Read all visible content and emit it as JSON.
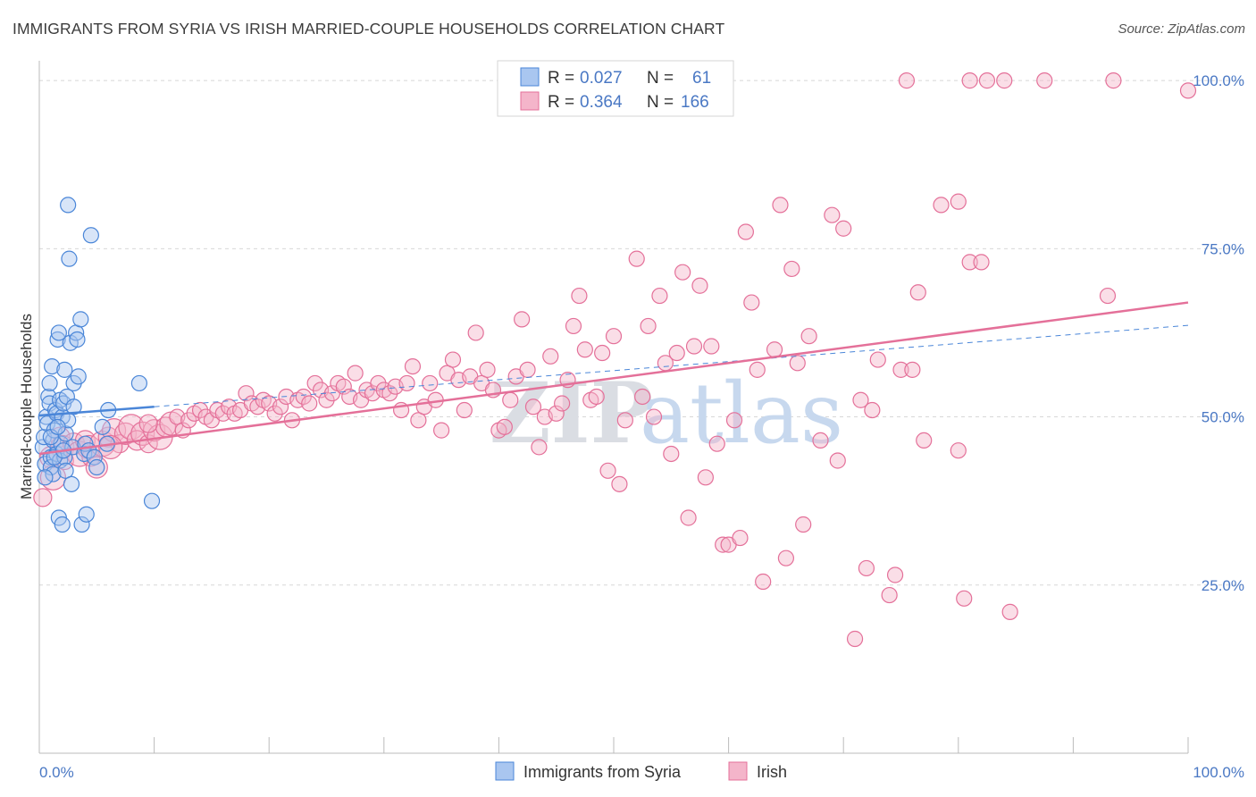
{
  "title": "IMMIGRANTS FROM SYRIA VS IRISH MARRIED-COUPLE HOUSEHOLDS CORRELATION CHART",
  "source": "Source: ZipAtlas.com",
  "watermark": {
    "zip": "ZIP",
    "atlas": "atlas"
  },
  "colors": {
    "blue": "#4a86d8",
    "blue_fill": "#a9c6f0",
    "pink": "#e47099",
    "pink_fill": "#f4b5ca",
    "grid": "#d8d8d8",
    "axis_text": "#4a78c4"
  },
  "chart_data": {
    "type": "scatter",
    "xlabel": "",
    "ylabel": "Married-couple Households",
    "xlim": [
      0,
      100
    ],
    "ylim": [
      0,
      104
    ],
    "x_tick_labels": [
      {
        "value": 0,
        "label": "0.0%"
      },
      {
        "value": 100,
        "label": "100.0%"
      }
    ],
    "y_tick_labels": [
      {
        "value": 25,
        "label": "25.0%"
      },
      {
        "value": 50,
        "label": "50.0%"
      },
      {
        "value": 75,
        "label": "75.0%"
      },
      {
        "value": 100,
        "label": "100.0%"
      }
    ],
    "grid": "horizontal dashed",
    "legend": {
      "placement": "top-center",
      "entries": [
        {
          "r_label": "R = ",
          "r_value": "0.027",
          "n_label": "N = ",
          "n_value": "61"
        },
        {
          "r_label": "R = ",
          "r_value": "0.364",
          "n_label": "N = ",
          "n_value": "166"
        }
      ]
    },
    "bottom_legend": [
      "Immigrants from Syria",
      "Irish"
    ],
    "series": [
      {
        "name": "Immigrants from Syria",
        "color": "#4a86d8",
        "trend": {
          "x0": 0,
          "y0": 50.2,
          "x1": 10,
          "y1": 51.5,
          "dashed_to_x": 100,
          "dashed_to_y": 63.6
        },
        "points": [
          [
            0.3,
            45.5
          ],
          [
            0.4,
            47.0
          ],
          [
            0.5,
            43.0
          ],
          [
            0.6,
            50.0
          ],
          [
            0.7,
            49.0
          ],
          [
            0.8,
            53.0
          ],
          [
            0.9,
            52.0
          ],
          [
            0.9,
            55.0
          ],
          [
            1.0,
            44.0
          ],
          [
            1.0,
            42.5
          ],
          [
            1.1,
            57.5
          ],
          [
            1.2,
            41.5
          ],
          [
            1.2,
            46.5
          ],
          [
            1.3,
            48.0
          ],
          [
            1.4,
            51.0
          ],
          [
            1.5,
            50.5
          ],
          [
            1.5,
            44.5
          ],
          [
            1.6,
            61.5
          ],
          [
            1.7,
            62.5
          ],
          [
            1.7,
            35.0
          ],
          [
            1.8,
            52.5
          ],
          [
            1.8,
            43.5
          ],
          [
            1.9,
            46.0
          ],
          [
            2.0,
            50.0
          ],
          [
            2.0,
            34.0
          ],
          [
            2.1,
            52.0
          ],
          [
            2.2,
            57.0
          ],
          [
            2.2,
            44.0
          ],
          [
            2.3,
            47.5
          ],
          [
            2.3,
            42.0
          ],
          [
            2.4,
            53.0
          ],
          [
            2.5,
            49.5
          ],
          [
            2.5,
            81.5
          ],
          [
            2.6,
            73.5
          ],
          [
            2.7,
            61.0
          ],
          [
            2.8,
            40.0
          ],
          [
            2.9,
            45.5
          ],
          [
            3.0,
            55.0
          ],
          [
            3.0,
            51.5
          ],
          [
            3.2,
            62.5
          ],
          [
            3.3,
            61.5
          ],
          [
            3.4,
            56.0
          ],
          [
            3.6,
            64.5
          ],
          [
            3.7,
            34.0
          ],
          [
            3.9,
            44.5
          ],
          [
            4.0,
            46.0
          ],
          [
            4.1,
            35.5
          ],
          [
            4.3,
            45.0
          ],
          [
            4.5,
            77.0
          ],
          [
            4.8,
            44.0
          ],
          [
            5.0,
            42.5
          ],
          [
            5.5,
            48.5
          ],
          [
            5.9,
            46.0
          ],
          [
            6.0,
            51.0
          ],
          [
            8.7,
            55.0
          ],
          [
            9.8,
            37.5
          ],
          [
            0.5,
            41.0
          ],
          [
            1.0,
            47.0
          ],
          [
            1.3,
            44.0
          ],
          [
            1.6,
            48.5
          ],
          [
            2.1,
            45.0
          ]
        ]
      },
      {
        "name": "Irish",
        "color": "#e47099",
        "trend": {
          "x0": 0,
          "y0": 44.5,
          "x1": 100,
          "y1": 67.0
        },
        "points": [
          [
            0.3,
            38.0
          ],
          [
            1.0,
            44.0
          ],
          [
            1.2,
            41.0
          ],
          [
            1.8,
            47.0
          ],
          [
            2.0,
            45.5
          ],
          [
            2.2,
            43.5
          ],
          [
            3.0,
            46.0
          ],
          [
            3.5,
            44.5
          ],
          [
            4.0,
            46.5
          ],
          [
            4.3,
            45.5
          ],
          [
            4.5,
            44.0
          ],
          [
            5.0,
            42.5
          ],
          [
            5.5,
            46.0
          ],
          [
            6.0,
            47.0
          ],
          [
            6.5,
            48.0
          ],
          [
            7.0,
            46.0
          ],
          [
            7.5,
            47.5
          ],
          [
            8.0,
            48.5
          ],
          [
            8.5,
            46.5
          ],
          [
            9.0,
            47.5
          ],
          [
            9.5,
            46.0
          ],
          [
            10.0,
            48.0
          ],
          [
            10.5,
            47.0
          ],
          [
            11.0,
            48.5
          ],
          [
            11.5,
            49.0
          ],
          [
            12.0,
            50.0
          ],
          [
            12.5,
            48.0
          ],
          [
            13.0,
            49.5
          ],
          [
            13.5,
            50.5
          ],
          [
            14.0,
            51.0
          ],
          [
            14.5,
            50.0
          ],
          [
            15.0,
            49.5
          ],
          [
            15.5,
            51.0
          ],
          [
            16.0,
            50.5
          ],
          [
            16.5,
            51.5
          ],
          [
            17.0,
            50.5
          ],
          [
            17.5,
            51.0
          ],
          [
            18.0,
            53.5
          ],
          [
            18.5,
            52.0
          ],
          [
            19.0,
            51.5
          ],
          [
            19.5,
            52.5
          ],
          [
            20.0,
            52.0
          ],
          [
            20.5,
            50.5
          ],
          [
            21.0,
            51.5
          ],
          [
            21.5,
            53.0
          ],
          [
            22.0,
            49.5
          ],
          [
            22.5,
            52.5
          ],
          [
            23.0,
            53.0
          ],
          [
            23.5,
            52.0
          ],
          [
            24.0,
            55.0
          ],
          [
            24.5,
            54.0
          ],
          [
            25.0,
            52.5
          ],
          [
            25.5,
            53.5
          ],
          [
            26.0,
            55.0
          ],
          [
            26.5,
            54.5
          ],
          [
            27.0,
            53.0
          ],
          [
            27.5,
            56.5
          ],
          [
            28.0,
            52.5
          ],
          [
            28.5,
            54.0
          ],
          [
            29.0,
            53.5
          ],
          [
            29.5,
            55.0
          ],
          [
            30.0,
            54.0
          ],
          [
            30.5,
            53.5
          ],
          [
            31.0,
            54.5
          ],
          [
            31.5,
            51.0
          ],
          [
            32.0,
            55.0
          ],
          [
            32.5,
            57.5
          ],
          [
            33.0,
            49.5
          ],
          [
            33.5,
            51.5
          ],
          [
            34.0,
            55.0
          ],
          [
            34.5,
            52.5
          ],
          [
            35.0,
            48.0
          ],
          [
            35.5,
            56.5
          ],
          [
            36.0,
            58.5
          ],
          [
            36.5,
            55.5
          ],
          [
            37.0,
            51.0
          ],
          [
            37.5,
            56.0
          ],
          [
            38.0,
            62.5
          ],
          [
            38.5,
            55.0
          ],
          [
            39.0,
            57.0
          ],
          [
            39.5,
            54.0
          ],
          [
            40.0,
            48.0
          ],
          [
            40.5,
            48.5
          ],
          [
            41.0,
            52.5
          ],
          [
            41.5,
            56.0
          ],
          [
            42.0,
            64.5
          ],
          [
            42.5,
            57.0
          ],
          [
            43.0,
            51.5
          ],
          [
            43.5,
            45.5
          ],
          [
            44.0,
            50.0
          ],
          [
            44.5,
            59.0
          ],
          [
            45.0,
            50.5
          ],
          [
            45.5,
            52.0
          ],
          [
            46.0,
            55.5
          ],
          [
            46.5,
            63.5
          ],
          [
            47.0,
            68.0
          ],
          [
            47.5,
            60.0
          ],
          [
            48.0,
            52.5
          ],
          [
            48.5,
            53.0
          ],
          [
            49.0,
            59.5
          ],
          [
            49.5,
            42.0
          ],
          [
            50.0,
            62.0
          ],
          [
            50.5,
            40.0
          ],
          [
            51.0,
            49.5
          ],
          [
            52.0,
            73.5
          ],
          [
            52.5,
            53.0
          ],
          [
            53.0,
            63.5
          ],
          [
            53.5,
            50.0
          ],
          [
            54.0,
            68.0
          ],
          [
            54.5,
            58.0
          ],
          [
            55.0,
            44.5
          ],
          [
            55.5,
            59.5
          ],
          [
            56.0,
            71.5
          ],
          [
            56.5,
            35.0
          ],
          [
            57.0,
            60.5
          ],
          [
            57.5,
            69.5
          ],
          [
            58.0,
            41.0
          ],
          [
            58.5,
            60.5
          ],
          [
            59.0,
            46.0
          ],
          [
            59.5,
            31.0
          ],
          [
            60.0,
            31.0
          ],
          [
            60.5,
            49.5
          ],
          [
            61.0,
            32.0
          ],
          [
            61.5,
            77.5
          ],
          [
            62.0,
            67.0
          ],
          [
            62.5,
            57.0
          ],
          [
            63.0,
            25.5
          ],
          [
            64.0,
            60.0
          ],
          [
            64.5,
            81.5
          ],
          [
            65.0,
            29.0
          ],
          [
            65.5,
            72.0
          ],
          [
            66.0,
            58.0
          ],
          [
            66.5,
            34.0
          ],
          [
            67.0,
            62.0
          ],
          [
            68.0,
            46.5
          ],
          [
            69.0,
            80.0
          ],
          [
            69.5,
            43.5
          ],
          [
            70.0,
            78.0
          ],
          [
            71.0,
            17.0
          ],
          [
            71.5,
            52.5
          ],
          [
            72.0,
            27.5
          ],
          [
            72.5,
            51.0
          ],
          [
            73.0,
            58.5
          ],
          [
            74.0,
            23.5
          ],
          [
            74.5,
            26.5
          ],
          [
            75.0,
            57.0
          ],
          [
            76.0,
            57.0
          ],
          [
            76.5,
            68.5
          ],
          [
            77.0,
            46.5
          ],
          [
            78.5,
            81.5
          ],
          [
            80.0,
            82.0
          ],
          [
            81.0,
            73.0
          ],
          [
            82.0,
            73.0
          ],
          [
            80.5,
            23.0
          ],
          [
            80.0,
            45.0
          ],
          [
            84.5,
            21.0
          ],
          [
            75.5,
            100.0
          ],
          [
            81.0,
            100.0
          ],
          [
            84.0,
            100.0
          ],
          [
            82.5,
            100.0
          ],
          [
            87.5,
            100.0
          ],
          [
            93.5,
            100.0
          ],
          [
            93.0,
            68.0
          ],
          [
            100.0,
            98.5
          ],
          [
            6.2,
            45.5
          ],
          [
            9.5,
            49.0
          ]
        ]
      }
    ]
  }
}
